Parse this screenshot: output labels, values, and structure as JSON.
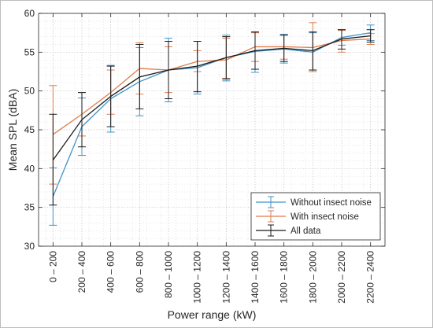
{
  "chart_data": {
    "type": "line",
    "xlabel": "Power range (kW)",
    "ylabel": "Mean SPL (dBA)",
    "ylim": [
      30,
      60
    ],
    "yticks": [
      30,
      35,
      40,
      45,
      50,
      55,
      60
    ],
    "grid": "on (major and minor, dotted)",
    "legend_position": "lower-right",
    "categories": [
      "0 – 200",
      "200 – 400",
      "400 – 600",
      "600 – 800",
      "800 – 1000",
      "1000 – 1200",
      "1200 – 1400",
      "1400 – 1600",
      "1600 – 1800",
      "1800 – 2000",
      "2000 – 2200",
      "2200 – 2400"
    ],
    "series": [
      {
        "name": "Without insect noise",
        "color": "#3f93c6",
        "values": [
          36.4,
          45.4,
          49.0,
          51.2,
          52.7,
          53.0,
          54.3,
          55.1,
          55.4,
          55.0,
          56.9,
          57.5
        ],
        "error_low": [
          32.7,
          41.7,
          44.7,
          46.8,
          48.6,
          49.6,
          51.3,
          52.4,
          53.6,
          52.5,
          55.9,
          56.5
        ],
        "error_high": [
          40.1,
          49.1,
          53.3,
          55.6,
          56.8,
          56.4,
          57.2,
          57.6,
          57.3,
          57.5,
          57.9,
          58.5
        ]
      },
      {
        "name": "With insect noise",
        "color": "#e07b4b",
        "values": [
          44.4,
          47.0,
          49.8,
          52.9,
          52.7,
          53.8,
          54.0,
          55.7,
          55.7,
          55.6,
          56.5,
          56.7
        ],
        "error_low": [
          38.0,
          44.2,
          47.0,
          49.6,
          49.8,
          52.5,
          51.5,
          53.8,
          54.1,
          52.5,
          55.0,
          56.0
        ],
        "error_high": [
          50.7,
          49.8,
          52.7,
          56.2,
          55.7,
          55.2,
          56.8,
          57.5,
          57.2,
          58.8,
          57.8,
          57.4
        ]
      },
      {
        "name": "All data",
        "color": "#1a1a1a",
        "values": [
          41.1,
          46.3,
          49.3,
          51.8,
          52.7,
          53.2,
          54.3,
          55.2,
          55.5,
          55.2,
          56.7,
          57.1
        ],
        "error_low": [
          35.3,
          42.8,
          45.4,
          47.7,
          49.0,
          49.9,
          51.6,
          52.8,
          53.8,
          52.7,
          55.4,
          56.3
        ],
        "error_high": [
          47.0,
          49.8,
          53.2,
          56.0,
          56.4,
          56.4,
          57.0,
          57.6,
          57.2,
          57.6,
          57.9,
          57.9
        ]
      }
    ]
  }
}
